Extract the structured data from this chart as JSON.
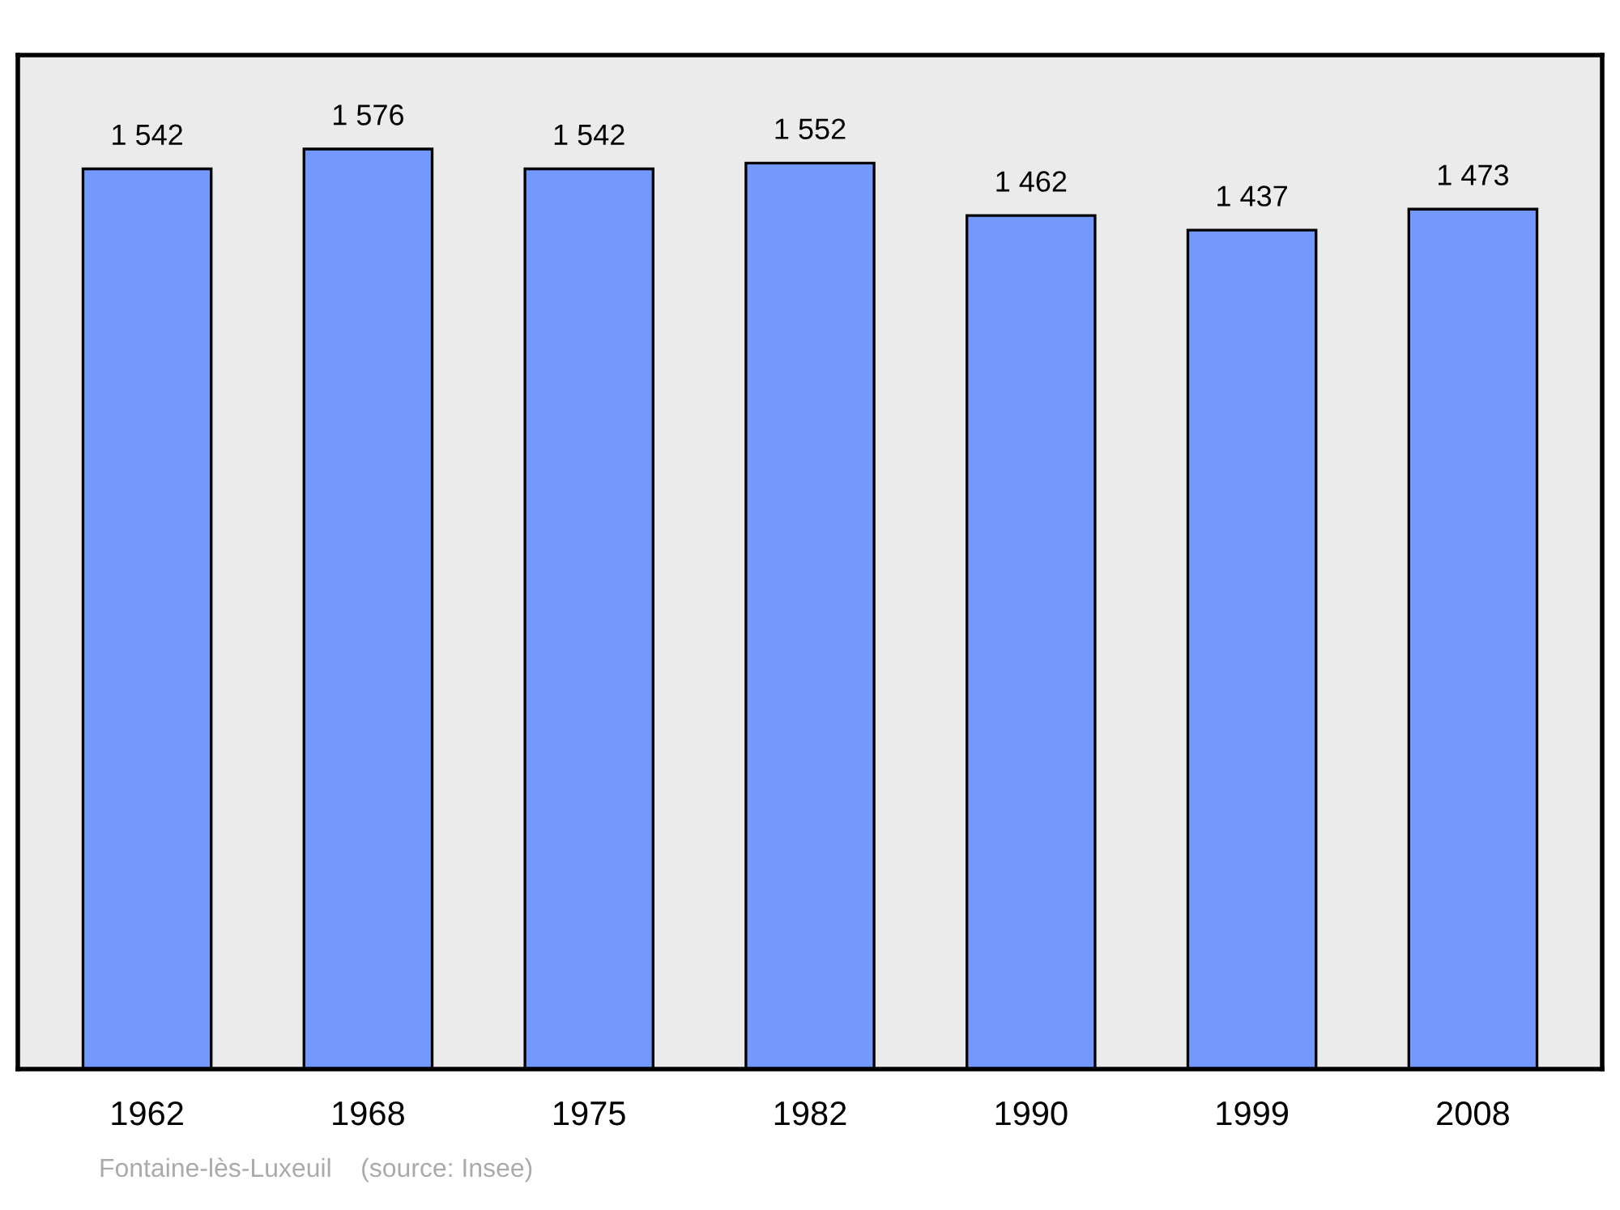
{
  "chart_data": {
    "type": "bar",
    "categories": [
      "1962",
      "1968",
      "1975",
      "1982",
      "1990",
      "1999",
      "2008"
    ],
    "values": [
      1542,
      1576,
      1542,
      1552,
      1462,
      1437,
      1473
    ],
    "value_labels": [
      "1 542",
      "1 576",
      "1 542",
      "1 552",
      "1 462",
      "1 437",
      "1 473"
    ],
    "color": "#7399ff",
    "ylim": [
      0,
      1737
    ],
    "tick_labels": "x",
    "grid": false,
    "legend": false,
    "annotations": [
      "Fontaine-lès-Luxeuil    (source: Insee)"
    ]
  }
}
